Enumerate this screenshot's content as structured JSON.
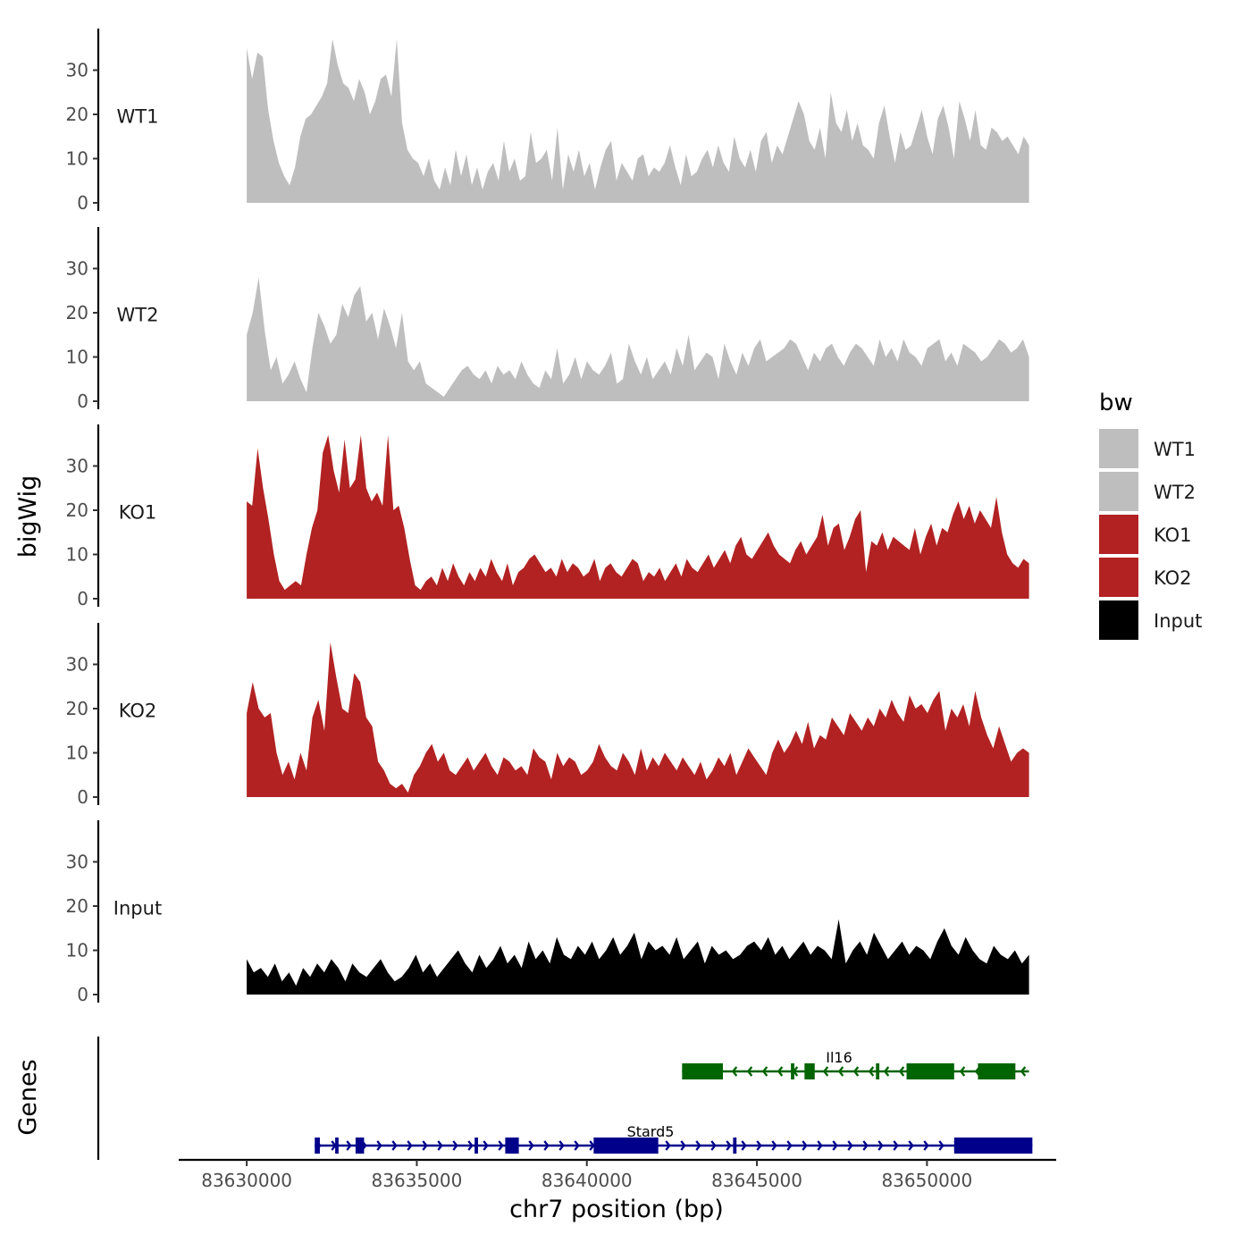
{
  "chart_data": {
    "type": "area",
    "ylabel": "bigWig",
    "gene_panel_label": "Genes",
    "xlabel": "chr7 position (bp)",
    "xlim": [
      83628000,
      83653800
    ],
    "ylim": [
      0,
      39
    ],
    "x_ticks": [
      83630000,
      83635000,
      83640000,
      83645000,
      83650000
    ],
    "x_tick_labels": [
      "83630000",
      "83635000",
      "83640000",
      "83645000",
      "83650000"
    ],
    "y_ticks": [
      0,
      10,
      20,
      30
    ],
    "y_tick_labels": [
      "0",
      "10",
      "20",
      "30"
    ],
    "legend": {
      "title": "bw",
      "position": "right",
      "entries": [
        {
          "label": "WT1",
          "color": "#bebebe"
        },
        {
          "label": "WT2",
          "color": "#bebebe"
        },
        {
          "label": "KO1",
          "color": "#b22222"
        },
        {
          "label": "KO2",
          "color": "#b22222"
        },
        {
          "label": "Input",
          "color": "#000000"
        }
      ]
    },
    "series": [
      {
        "name": "WT1",
        "color": "#bebebe",
        "x_start": 83630000,
        "x_end": 83653000,
        "values": [
          35,
          28,
          34,
          33,
          21,
          14,
          9,
          6,
          4,
          8,
          15,
          19,
          20,
          22,
          24,
          27,
          37,
          31,
          27,
          26,
          23,
          28,
          25,
          20,
          23,
          28,
          29,
          24,
          37,
          18,
          12,
          10,
          9,
          6,
          10,
          5,
          3,
          8,
          4,
          12,
          6,
          11,
          4,
          8,
          3,
          7,
          9,
          5,
          14,
          7,
          10,
          5,
          6,
          16,
          9,
          10,
          12,
          5,
          17,
          3,
          11,
          7,
          12,
          6,
          9,
          3,
          8,
          12,
          14,
          5,
          9,
          7,
          5,
          10,
          11,
          6,
          8,
          7,
          9,
          13,
          8,
          4,
          11,
          6,
          7,
          10,
          12,
          8,
          13,
          9,
          7,
          15,
          10,
          8,
          12,
          7,
          14,
          16,
          9,
          13,
          11,
          15,
          19,
          23,
          20,
          14,
          12,
          17,
          10,
          25,
          18,
          16,
          21,
          14,
          18,
          13,
          12,
          10,
          18,
          22,
          15,
          9,
          16,
          12,
          13,
          17,
          21,
          15,
          11,
          19,
          22,
          17,
          10,
          23,
          19,
          14,
          21,
          13,
          12,
          17,
          16,
          14,
          15,
          13,
          11,
          15,
          13
        ]
      },
      {
        "name": "WT2",
        "color": "#bebebe",
        "x_start": 83630000,
        "x_end": 83653000,
        "values": [
          15,
          20,
          28,
          16,
          7,
          10,
          4,
          6,
          9,
          5,
          2,
          12,
          20,
          17,
          13,
          15,
          22,
          19,
          24,
          26,
          18,
          20,
          14,
          21,
          17,
          12,
          20,
          9,
          7,
          9,
          4,
          3,
          2,
          1,
          3,
          5,
          7,
          8,
          6,
          5,
          7,
          4,
          8,
          6,
          7,
          5,
          9,
          6,
          4,
          3,
          7,
          5,
          12,
          4,
          6,
          10,
          5,
          9,
          7,
          6,
          8,
          11,
          4,
          5,
          13,
          9,
          6,
          10,
          5,
          7,
          9,
          6,
          12,
          8,
          15,
          7,
          9,
          11,
          10,
          5,
          13,
          9,
          6,
          11,
          8,
          12,
          14,
          9,
          10,
          11,
          12,
          14,
          13,
          10,
          7,
          11,
          9,
          12,
          13,
          10,
          8,
          11,
          13,
          12,
          10,
          8,
          14,
          10,
          12,
          9,
          14,
          11,
          10,
          8,
          12,
          13,
          14,
          9,
          11,
          8,
          13,
          12,
          11,
          9,
          10,
          12,
          14,
          13,
          11,
          12,
          14,
          10
        ]
      },
      {
        "name": "KO1",
        "color": "#b22222",
        "x_start": 83630000,
        "x_end": 83653000,
        "values": [
          22,
          21,
          34,
          25,
          18,
          10,
          4,
          2,
          3,
          4,
          3,
          10,
          16,
          20,
          33,
          37,
          29,
          24,
          36,
          25,
          27,
          37,
          25,
          22,
          24,
          21,
          37,
          20,
          21,
          16,
          9,
          3,
          2,
          4,
          5,
          3,
          7,
          4,
          8,
          5,
          3,
          6,
          4,
          7,
          5,
          9,
          6,
          4,
          8,
          3,
          6,
          7,
          9,
          10,
          8,
          6,
          7,
          5,
          9,
          6,
          8,
          7,
          5,
          6,
          9,
          4,
          7,
          8,
          6,
          5,
          7,
          9,
          8,
          4,
          6,
          5,
          7,
          4,
          6,
          8,
          5,
          9,
          7,
          6,
          8,
          10,
          7,
          9,
          11,
          8,
          12,
          14,
          10,
          9,
          11,
          13,
          15,
          12,
          10,
          9,
          8,
          11,
          13,
          10,
          12,
          14,
          19,
          12,
          16,
          17,
          11,
          14,
          18,
          20,
          6,
          13,
          12,
          15,
          11,
          14,
          13,
          12,
          11,
          16,
          10,
          14,
          17,
          12,
          16,
          15,
          19,
          22,
          18,
          21,
          17,
          20,
          18,
          16,
          23,
          15,
          10,
          8,
          7,
          9,
          8
        ]
      },
      {
        "name": "KO2",
        "color": "#b22222",
        "x_start": 83630000,
        "x_end": 83653000,
        "values": [
          19,
          26,
          20,
          18,
          19,
          10,
          5,
          8,
          4,
          10,
          6,
          18,
          22,
          15,
          35,
          27,
          20,
          19,
          28,
          26,
          18,
          16,
          8,
          6,
          3,
          2,
          3,
          1,
          5,
          7,
          10,
          12,
          8,
          10,
          6,
          5,
          7,
          9,
          6,
          8,
          10,
          7,
          5,
          9,
          8,
          6,
          7,
          5,
          11,
          9,
          8,
          4,
          10,
          7,
          9,
          8,
          5,
          6,
          8,
          12,
          9,
          7,
          6,
          10,
          8,
          5,
          11,
          6,
          9,
          7,
          10,
          8,
          6,
          9,
          7,
          5,
          8,
          4,
          6,
          9,
          7,
          10,
          5,
          8,
          11,
          9,
          7,
          5,
          10,
          13,
          10,
          12,
          15,
          12,
          17,
          11,
          14,
          13,
          18,
          16,
          14,
          19,
          17,
          15,
          18,
          16,
          20,
          18,
          22,
          19,
          17,
          23,
          20,
          21,
          19,
          22,
          24,
          15,
          20,
          18,
          21,
          16,
          24,
          18,
          14,
          11,
          16,
          12,
          8,
          10,
          11,
          10
        ]
      },
      {
        "name": "Input",
        "color": "#000000",
        "x_start": 83630000,
        "x_end": 83653000,
        "values": [
          8,
          5,
          6,
          4,
          7,
          3,
          5,
          2,
          6,
          4,
          7,
          5,
          8,
          6,
          3,
          7,
          5,
          4,
          6,
          8,
          5,
          3,
          4,
          6,
          9,
          5,
          7,
          4,
          6,
          8,
          10,
          7,
          5,
          9,
          6,
          8,
          11,
          7,
          9,
          6,
          12,
          8,
          10,
          7,
          13,
          9,
          8,
          11,
          9,
          12,
          8,
          10,
          13,
          9,
          11,
          14,
          8,
          12,
          10,
          11,
          9,
          13,
          8,
          10,
          12,
          7,
          11,
          9,
          10,
          8,
          9,
          11,
          12,
          10,
          13,
          9,
          11,
          8,
          10,
          12,
          9,
          11,
          10,
          8,
          17,
          7,
          10,
          12,
          9,
          14,
          11,
          8,
          10,
          12,
          9,
          11,
          10,
          8,
          12,
          15,
          11,
          9,
          13,
          10,
          8,
          7,
          11,
          9,
          8,
          10,
          7,
          9
        ]
      }
    ],
    "genes": [
      {
        "name": "Il16",
        "strand": "-",
        "color": "#006400",
        "start": 83642800,
        "end": 83653000,
        "exons": [
          [
            83642800,
            83644000
          ],
          [
            83646000,
            83646100
          ],
          [
            83646400,
            83646700
          ],
          [
            83648500,
            83648600
          ],
          [
            83649400,
            83650800
          ],
          [
            83651500,
            83652600
          ]
        ]
      },
      {
        "name": "Stard5",
        "strand": "+",
        "color": "#00008b",
        "start": 83632000,
        "end": 83653100,
        "exons": [
          [
            83632000,
            83632150
          ],
          [
            83632600,
            83632700
          ],
          [
            83633200,
            83633450
          ],
          [
            83636700,
            83636800
          ],
          [
            83637600,
            83638000
          ],
          [
            83640200,
            83642100
          ],
          [
            83644300,
            83644400
          ],
          [
            83650800,
            83653100
          ]
        ]
      }
    ]
  }
}
